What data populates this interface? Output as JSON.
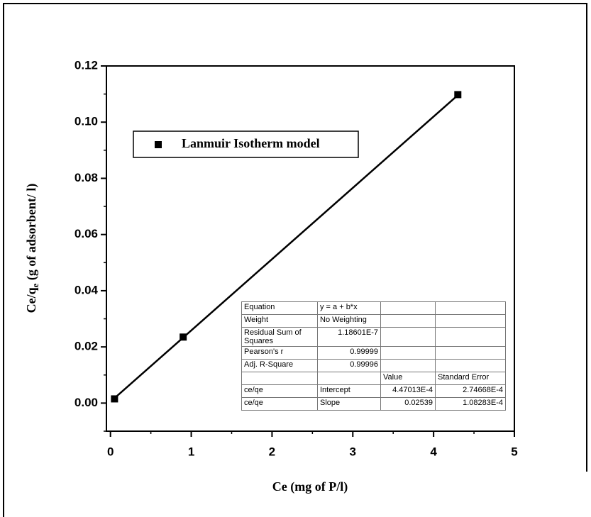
{
  "chart_data": {
    "type": "scatter",
    "xlabel": "Ce (mg of P/l)",
    "ylabel": {
      "text": "Ce/q",
      "subscript": "e",
      "suffix": "  (g of adsorbent/ l)"
    },
    "series": [
      {
        "name": "Lanmuir Isotherm model",
        "color": "#000000",
        "x": [
          0.05,
          0.9,
          4.3
        ],
        "values": [
          0.0015,
          0.0235,
          0.1098
        ]
      }
    ],
    "fit_line": {
      "color": "#000000",
      "x": [
        0.04,
        4.3
      ],
      "values": [
        0.0015,
        0.1096
      ]
    },
    "xlim": [
      -0.05,
      5
    ],
    "ylim": [
      -0.01,
      0.12
    ],
    "xticks": [
      0,
      1,
      2,
      3,
      4,
      5
    ],
    "xminorticks": [
      0.5,
      1.5,
      2.5,
      3.5,
      4.5
    ],
    "yticks": [
      {
        "value": 0,
        "label": "0.00"
      },
      {
        "value": 0.02,
        "label": "0.02"
      },
      {
        "value": 0.04,
        "label": "0.04"
      },
      {
        "value": 0.06,
        "label": "0.06"
      },
      {
        "value": 0.08,
        "label": "0.08"
      },
      {
        "value": 0.1,
        "label": "0.10"
      },
      {
        "value": 0.12,
        "label": "0.12"
      }
    ],
    "yminorticks": [
      -0.01,
      0.01,
      0.03,
      0.05,
      0.07,
      0.09,
      0.11
    ],
    "legend": "upper left",
    "table": {
      "rows": [
        [
          "Equation",
          "y = a + b*x",
          null,
          null
        ],
        [
          "Weight",
          "No Weighting",
          null,
          null
        ],
        [
          "Residual Sum of Squares",
          "1.18601E-7",
          null,
          null
        ],
        [
          "Pearson's r",
          "0.99999",
          null,
          null
        ],
        [
          "Adj. R-Square",
          "0.99996",
          null,
          null
        ],
        [
          null,
          null,
          "Value",
          "Standard Error"
        ],
        [
          "ce/qe",
          "Intercept",
          "4.47013E-4",
          "2.74668E-4"
        ],
        [
          "ce/qe",
          "Slope",
          "0.02539",
          "1.08283E-4"
        ]
      ]
    }
  }
}
